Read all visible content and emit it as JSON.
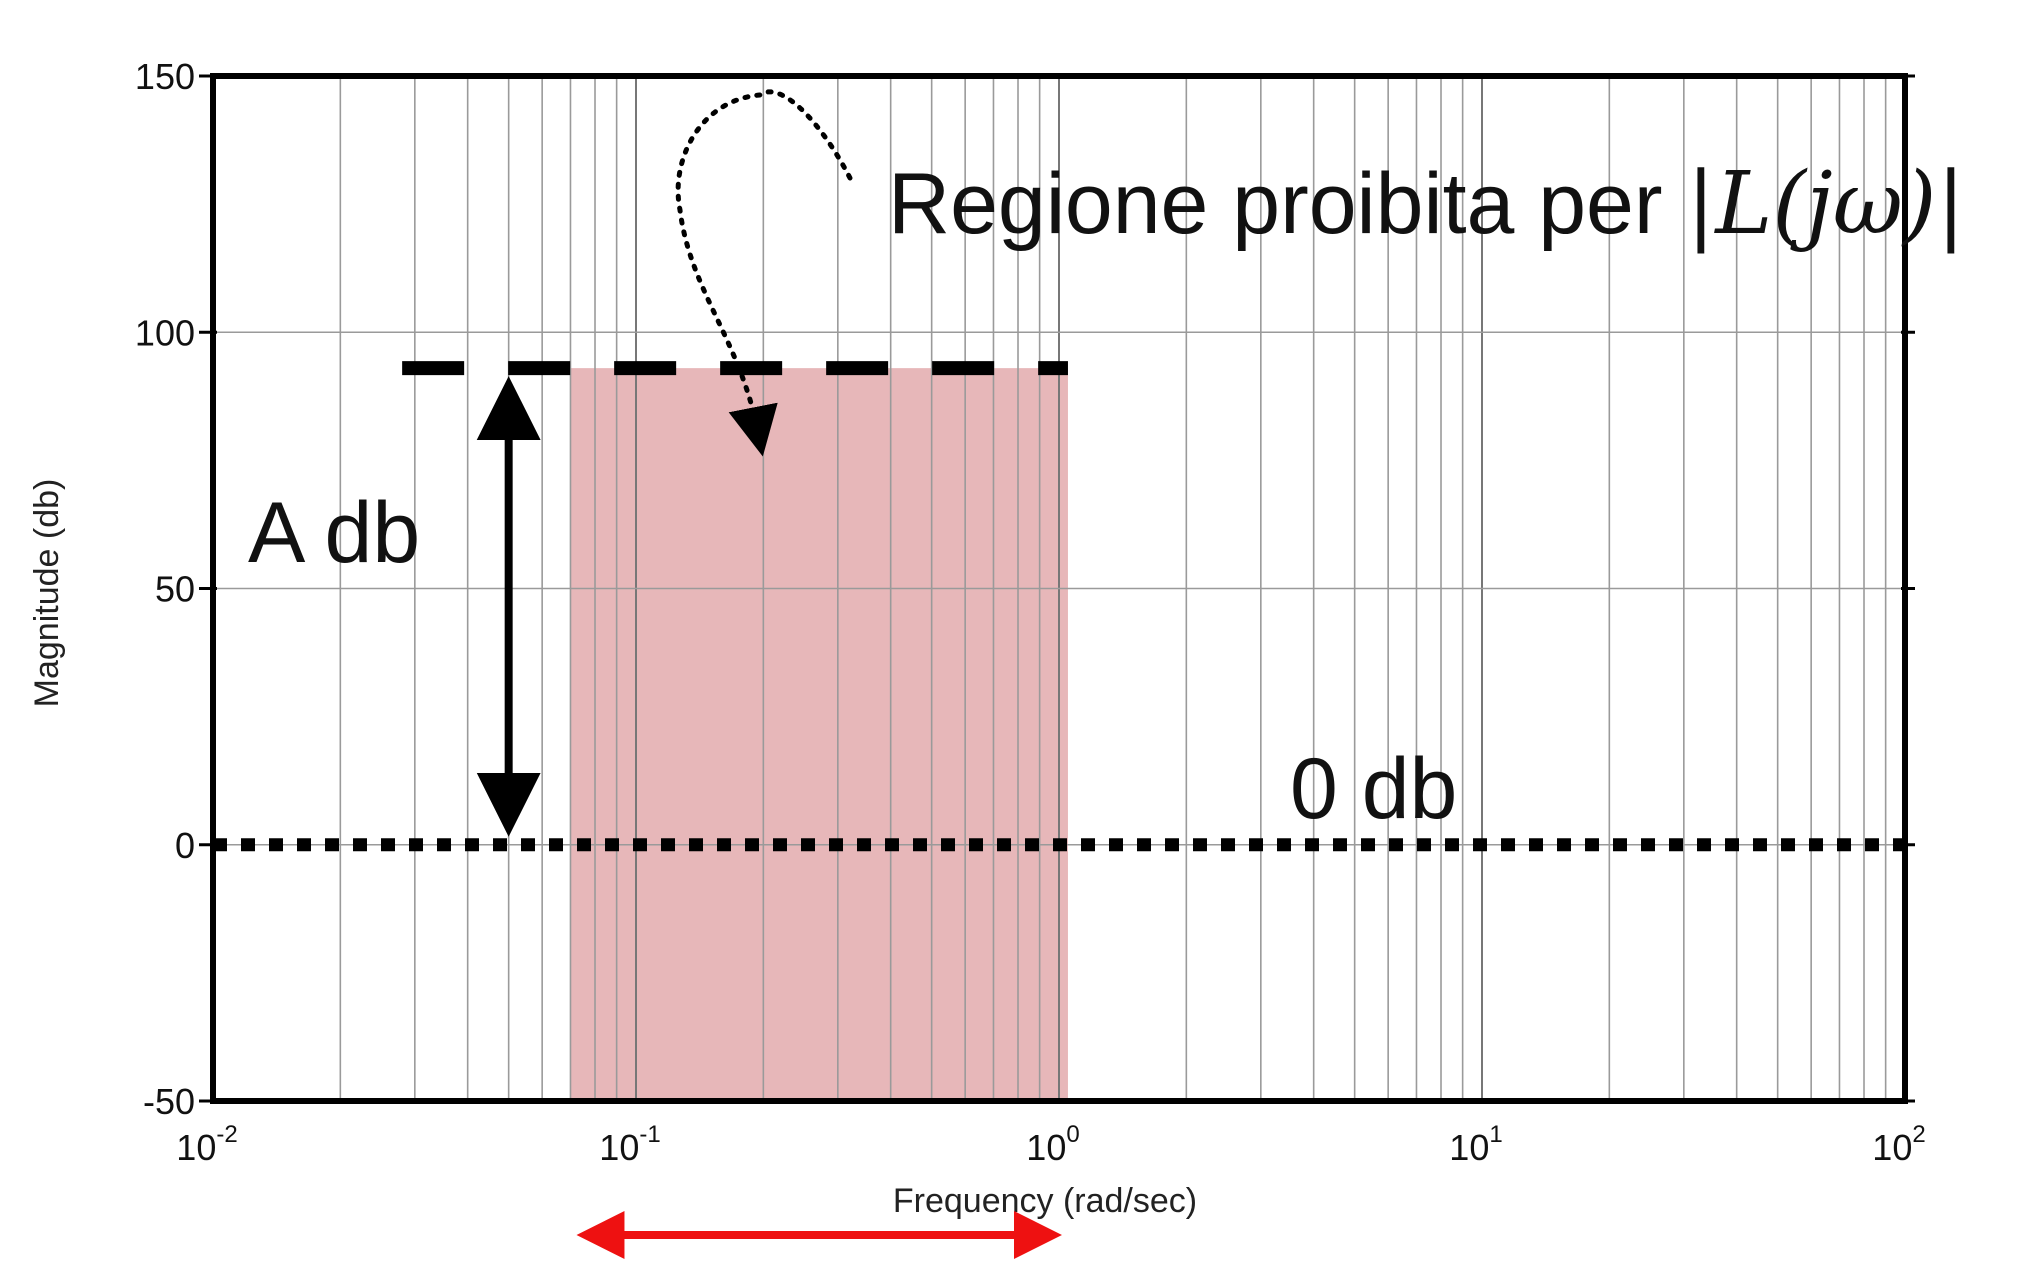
{
  "chart_data": {
    "type": "line",
    "xscale": "log",
    "xlim": [
      0.01,
      100
    ],
    "ylim": [
      -50,
      150
    ],
    "grid": true,
    "xlabel": "Frequency (rad/sec)",
    "ylabel": "Magnitude (db)",
    "yticks": [
      -50,
      0,
      50,
      100,
      150
    ],
    "ytick_labels": [
      "-50",
      "0",
      "50",
      "100",
      "150"
    ],
    "xticks": [
      0.01,
      0.1,
      1,
      10,
      100
    ],
    "xtick_bases": [
      "10",
      "10",
      "10",
      "10",
      "10"
    ],
    "xtick_exps": [
      "-2",
      "-1",
      "0",
      "1",
      "2"
    ],
    "forbidden_region": {
      "x_from": 0.07,
      "x_to": 1.05,
      "y_from": -50,
      "y_to": 93,
      "color": "#e7b7b9"
    },
    "a_level_line": {
      "y": 93,
      "x_from": 0.028,
      "x_to": 1.05,
      "style": "dashed"
    },
    "zero_line": {
      "y": 0,
      "x_from": 0.01,
      "x_to": 100,
      "style": "dotted"
    },
    "a_arrow": {
      "x": 0.05,
      "y_from": 0,
      "y_to": 93
    },
    "band_arrow": {
      "x_from": 0.07,
      "x_to": 1.05,
      "color": "#ee1111"
    },
    "annotations": {
      "region_text": "Regione proibita per ",
      "region_math": "|L(jω)|",
      "a_label": "A  db",
      "zero_label": "0  db"
    }
  }
}
